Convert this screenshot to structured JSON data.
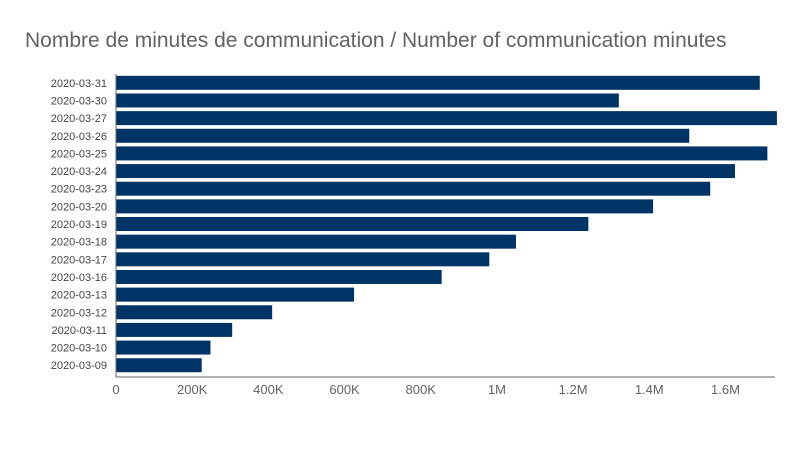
{
  "chart_data": {
    "type": "bar",
    "orientation": "horizontal",
    "title": "Nombre de minutes de communication / Number of communication minutes",
    "categories": [
      "2020-03-31",
      "2020-03-30",
      "2020-03-27",
      "2020-03-26",
      "2020-03-25",
      "2020-03-24",
      "2020-03-23",
      "2020-03-20",
      "2020-03-19",
      "2020-03-18",
      "2020-03-17",
      "2020-03-16",
      "2020-03-13",
      "2020-03-12",
      "2020-03-11",
      "2020-03-10",
      "2020-03-09"
    ],
    "values": [
      1690000,
      1320000,
      1735000,
      1505000,
      1710000,
      1625000,
      1560000,
      1410000,
      1240000,
      1050000,
      980000,
      855000,
      625000,
      410000,
      305000,
      248000,
      225000
    ],
    "xlim": [
      0,
      1730000
    ],
    "xticks": [
      0,
      200000,
      400000,
      600000,
      800000,
      1000000,
      1200000,
      1400000,
      1600000
    ],
    "xtick_labels": [
      "0",
      "200K",
      "400K",
      "600K",
      "800K",
      "1M",
      "1.2M",
      "1.4M",
      "1.6M"
    ],
    "bar_color": "#003366",
    "grid": false,
    "legend": "none"
  }
}
